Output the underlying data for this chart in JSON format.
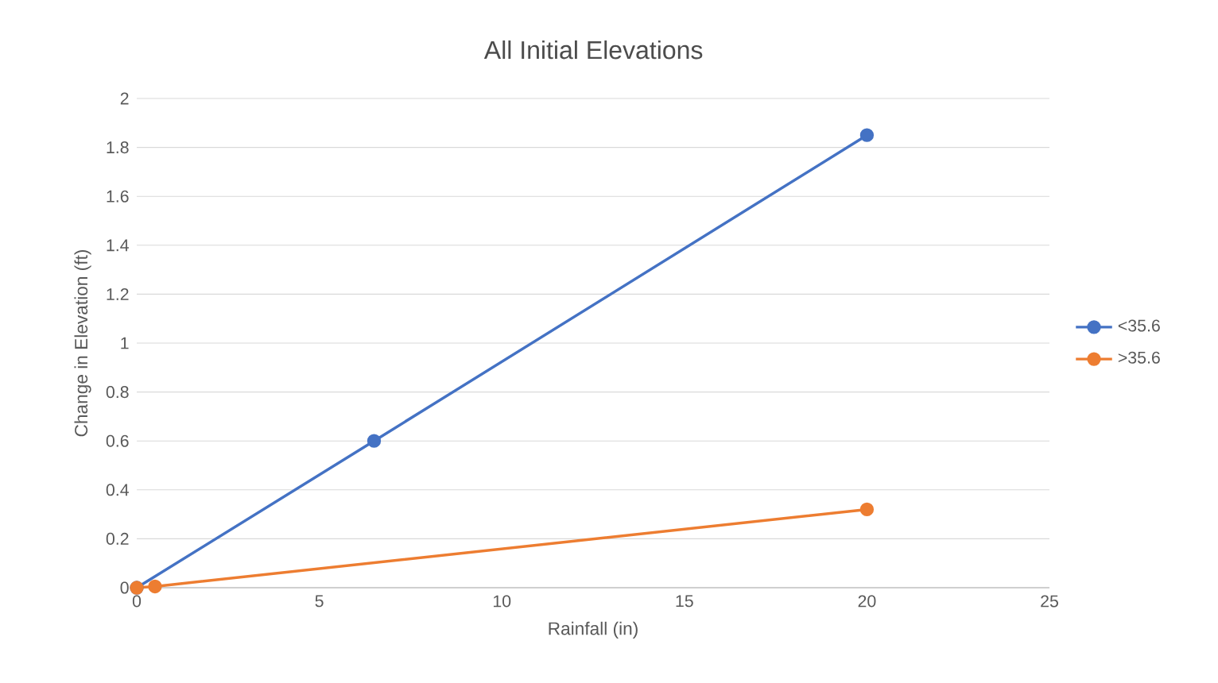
{
  "chart_data": {
    "type": "line",
    "title": "All Initial Elevations",
    "xlabel": "Rainfall (in)",
    "ylabel": "Change in Elevation (ft)",
    "xlim": [
      0,
      25
    ],
    "xticks": [
      0,
      5,
      10,
      15,
      20,
      25
    ],
    "ylim": [
      0,
      2
    ],
    "yticks": [
      0,
      0.2,
      0.4,
      0.6,
      0.8,
      1,
      1.2,
      1.4,
      1.6,
      1.8,
      2
    ],
    "grid": "y",
    "legend": "right",
    "marker": "circle",
    "line_style": "solid",
    "series": [
      {
        "name": "<35.6",
        "color": "#4472c4",
        "x": [
          0,
          6.5,
          20
        ],
        "values": [
          0,
          0.6,
          1.85
        ]
      },
      {
        "name": ">35.6",
        "color": "#ed7d31",
        "x": [
          0,
          0.5,
          20
        ],
        "values": [
          0,
          0.005,
          0.32
        ]
      }
    ]
  }
}
